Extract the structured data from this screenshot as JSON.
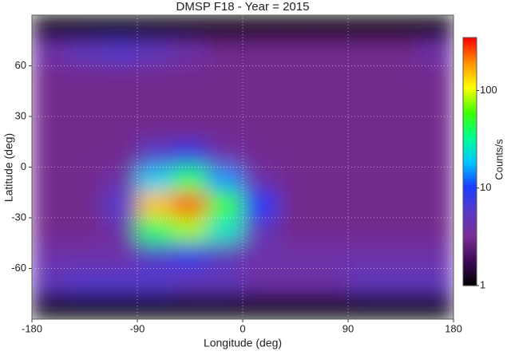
{
  "chart_data": {
    "type": "heatmap",
    "title": "DMSP F18 - Year = 2015",
    "xlabel": "Longitude (deg)",
    "ylabel": "Latitude (deg)",
    "colorbar_label": "Counts/s",
    "xlim": [
      -180,
      180
    ],
    "ylim": [
      -90,
      90
    ],
    "xticks": [
      -180,
      -90,
      0,
      90,
      180
    ],
    "yticks": [
      -60,
      -30,
      0,
      30,
      60
    ],
    "grid": true,
    "log_color_scale": true,
    "clim": [
      1,
      350
    ],
    "cticks": [
      1,
      10,
      100
    ],
    "colormap": [
      "#000000",
      "#3c0a55",
      "#7a2d95",
      "#5a3ac8",
      "#1a3cff",
      "#00c8ff",
      "#00ff90",
      "#40ff00",
      "#ffff00",
      "#ff9000",
      "#ff0000"
    ],
    "x": [
      -165,
      -135,
      -105,
      -75,
      -45,
      -15,
      15,
      45,
      75,
      105,
      135,
      165
    ],
    "y": [
      82.5,
      67.5,
      52.5,
      37.5,
      22.5,
      7.5,
      -7.5,
      -22.5,
      -37.5,
      -52.5,
      -67.5,
      -82.5
    ],
    "z": [
      [
        1,
        1,
        1,
        1,
        1,
        1,
        1,
        1,
        1,
        1,
        1,
        1
      ],
      [
        4,
        5,
        6,
        5,
        4,
        3,
        3,
        3,
        3,
        3,
        3,
        4
      ],
      [
        3,
        3,
        3,
        3,
        3,
        3,
        3,
        3,
        3,
        3,
        3,
        3
      ],
      [
        3,
        3,
        3,
        3,
        3,
        3,
        3,
        3,
        3,
        3,
        3,
        3
      ],
      [
        3,
        3,
        3,
        3,
        3,
        3,
        3,
        3,
        3,
        3,
        3,
        3
      ],
      [
        3,
        3,
        3,
        6,
        8,
        4,
        3,
        3,
        3,
        3,
        3,
        3
      ],
      [
        3,
        3,
        4,
        20,
        40,
        15,
        4,
        3,
        3,
        3,
        3,
        3
      ],
      [
        3,
        3,
        6,
        150,
        250,
        60,
        10,
        3,
        3,
        3,
        3,
        3
      ],
      [
        3,
        3,
        4,
        40,
        80,
        25,
        5,
        3,
        3,
        3,
        3,
        3
      ],
      [
        4,
        4,
        4,
        6,
        8,
        5,
        4,
        4,
        4,
        4,
        4,
        4
      ],
      [
        5,
        6,
        6,
        6,
        5,
        5,
        4,
        4,
        4,
        5,
        5,
        5
      ],
      [
        1,
        1,
        1,
        1,
        1,
        1,
        1,
        1,
        1,
        1,
        1,
        1
      ]
    ]
  }
}
